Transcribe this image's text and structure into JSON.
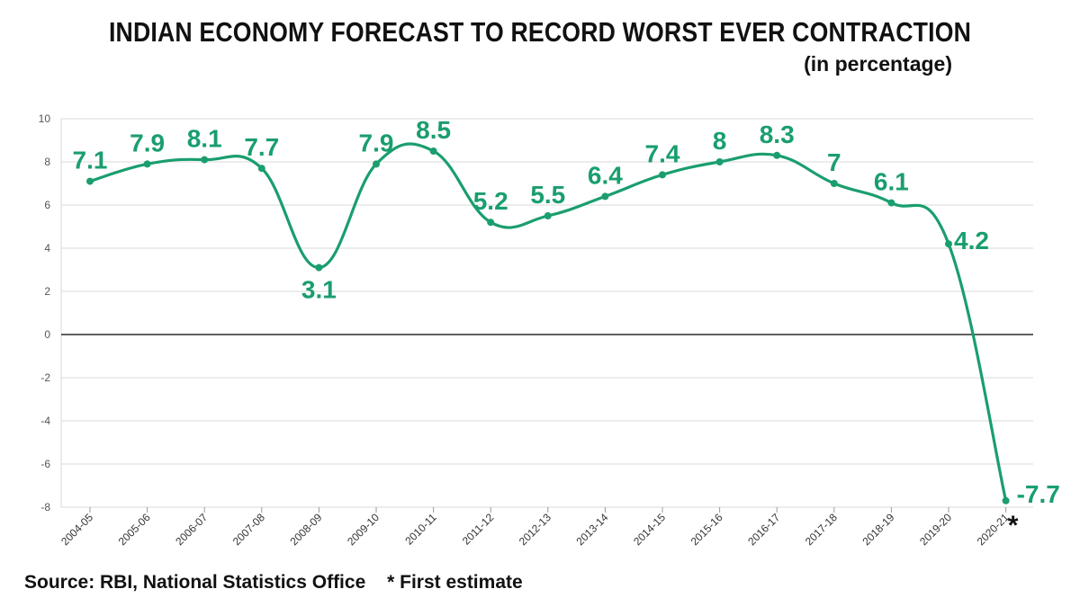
{
  "title": "INDIAN ECONOMY FORECAST TO RECORD WORST EVER CONTRACTION",
  "subtitle": "(in percentage)",
  "footer": {
    "source": "Source: RBI, National Statistics Office",
    "note": "* First estimate"
  },
  "colors": {
    "line": "#1a9e6e",
    "label": "#1a9e6e",
    "grid": "#e6e6e6",
    "zero_line": "#000000",
    "axis_text": "#555555"
  },
  "chart_data": {
    "type": "line",
    "title": "INDIAN ECONOMY FORECAST TO RECORD WORST EVER CONTRACTION",
    "subtitle": "(in percentage)",
    "categories": [
      "2004-05",
      "2005-06",
      "2006-07",
      "2007-08",
      "2008-09",
      "2009-10",
      "2010-11",
      "2011-12",
      "2012-13",
      "2013-14",
      "2014-15",
      "2015-16",
      "2016-17",
      "2017-18",
      "2018-19",
      "2019-20",
      "2020-21"
    ],
    "values": [
      7.1,
      7.9,
      8.1,
      7.7,
      3.1,
      7.9,
      8.5,
      5.2,
      5.5,
      6.4,
      7.4,
      8,
      8.3,
      7,
      6.1,
      4.2,
      -7.7
    ],
    "data_labels": [
      "7.1",
      "7.9",
      "8.1",
      "7.7",
      "3.1",
      "7.9",
      "8.5",
      "5.2",
      "5.5",
      "6.4",
      "7.4",
      "8",
      "8.3",
      "7",
      "6.1",
      "4.2",
      "-7.7"
    ],
    "yticks": [
      10,
      8,
      6,
      4,
      2,
      0,
      -2,
      -4,
      -6,
      -8
    ],
    "ylim": [
      -8,
      10
    ],
    "grid": true,
    "last_point_marker": "*",
    "xlabel": "",
    "ylabel": ""
  }
}
